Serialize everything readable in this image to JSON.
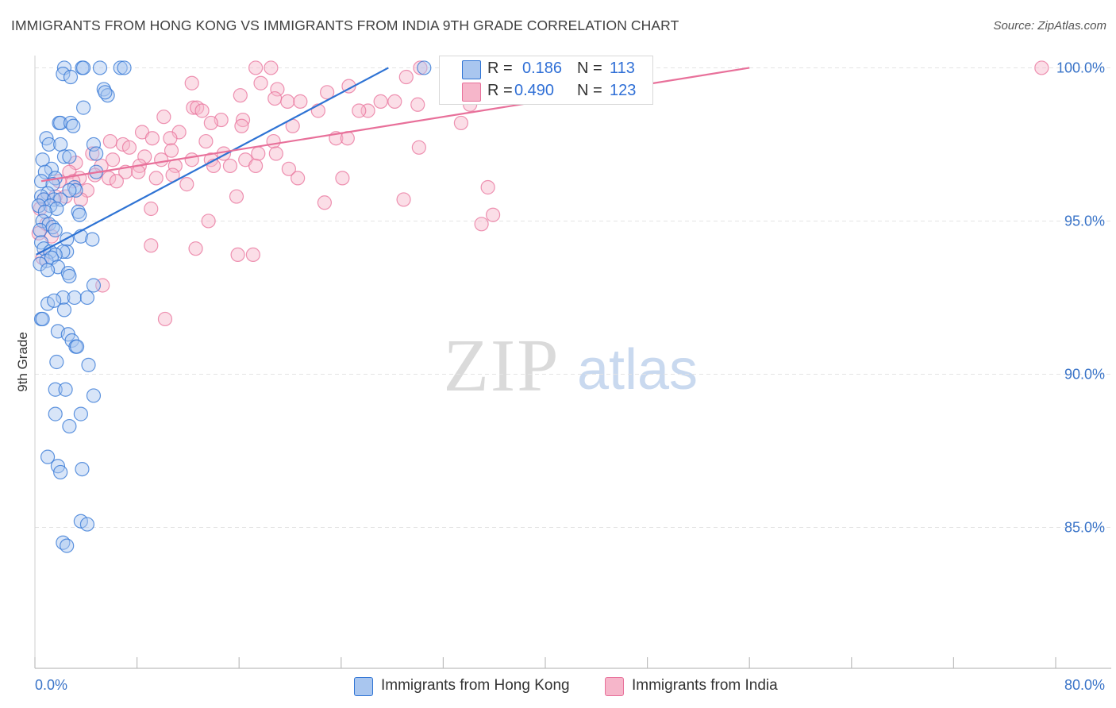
{
  "header": {
    "title": "IMMIGRANTS FROM HONG KONG VS IMMIGRANTS FROM INDIA 9TH GRADE CORRELATION CHART",
    "source": "Source: ZipAtlas.com"
  },
  "colors": {
    "blue": "#2e73d4",
    "blue_fill": "#a9c6ef",
    "pink": "#e8709a",
    "pink_fill": "#f6b6ca",
    "axis_text_blue": "#3a74c8",
    "grid": "#e4e4e4"
  },
  "legend": {
    "rows": [
      {
        "r_label": "R =",
        "r_value": "0.186",
        "n_label": "N =",
        "n_value": "113"
      },
      {
        "r_label": "R =",
        "r_value": "0.490",
        "n_label": "N =",
        "n_value": "123"
      }
    ]
  },
  "bottom_legend": {
    "items": [
      "Immigrants from Hong Kong",
      "Immigrants from India"
    ]
  },
  "watermark": {
    "zip": "ZIP",
    "atlas": "atlas"
  },
  "chart_data": {
    "type": "scatter",
    "title": "IMMIGRANTS FROM HONG KONG VS IMMIGRANTS FROM INDIA 9TH GRADE CORRELATION CHART",
    "xlabel": "",
    "ylabel": "9th Grade",
    "xlim": [
      0,
      80
    ],
    "ylim": [
      80.4,
      100.4
    ],
    "x_tick_labels": [
      "0.0%",
      "80.0%"
    ],
    "y_ticks": [
      100,
      95,
      90,
      85
    ],
    "y_tick_labels": [
      "100.0%",
      "95.0%",
      "90.0%",
      "85.0%"
    ],
    "grid": true,
    "series": [
      {
        "name": "Immigrants from Hong Kong",
        "r": 0.186,
        "n": 113,
        "trend": {
          "x": [
            0.1,
            27.7
          ],
          "y": [
            93.9,
            100.0
          ]
        },
        "points": [
          [
            2.3,
            100.0
          ],
          [
            3.7,
            100.0
          ],
          [
            3.8,
            100.0
          ],
          [
            5.1,
            100.0
          ],
          [
            6.7,
            100.0
          ],
          [
            7.0,
            100.0
          ],
          [
            30.5,
            100.0
          ],
          [
            2.2,
            99.8
          ],
          [
            2.8,
            99.7
          ],
          [
            5.4,
            99.3
          ],
          [
            5.7,
            99.1
          ],
          [
            5.5,
            99.2
          ],
          [
            3.8,
            98.7
          ],
          [
            1.9,
            98.2
          ],
          [
            2.0,
            98.2
          ],
          [
            2.8,
            98.2
          ],
          [
            3.0,
            98.1
          ],
          [
            0.9,
            97.7
          ],
          [
            1.1,
            97.5
          ],
          [
            2.0,
            97.5
          ],
          [
            4.6,
            97.5
          ],
          [
            4.8,
            97.2
          ],
          [
            2.3,
            97.1
          ],
          [
            2.7,
            97.1
          ],
          [
            0.6,
            97.0
          ],
          [
            1.3,
            96.7
          ],
          [
            0.8,
            96.6
          ],
          [
            4.8,
            96.6
          ],
          [
            1.6,
            96.4
          ],
          [
            0.5,
            96.3
          ],
          [
            1.4,
            96.2
          ],
          [
            3.1,
            96.1
          ],
          [
            3.2,
            96.0
          ],
          [
            2.7,
            96.0
          ],
          [
            1.0,
            95.9
          ],
          [
            0.5,
            95.8
          ],
          [
            0.7,
            95.7
          ],
          [
            1.5,
            95.7
          ],
          [
            2.0,
            95.7
          ],
          [
            1.2,
            95.5
          ],
          [
            0.3,
            95.5
          ],
          [
            1.7,
            95.4
          ],
          [
            0.8,
            95.3
          ],
          [
            3.4,
            95.3
          ],
          [
            3.5,
            95.2
          ],
          [
            0.6,
            95.0
          ],
          [
            1.1,
            94.9
          ],
          [
            1.4,
            94.8
          ],
          [
            0.4,
            94.7
          ],
          [
            1.6,
            94.7
          ],
          [
            3.6,
            94.5
          ],
          [
            2.5,
            94.4
          ],
          [
            0.5,
            94.3
          ],
          [
            4.5,
            94.4
          ],
          [
            0.7,
            94.1
          ],
          [
            1.2,
            94.0
          ],
          [
            2.5,
            94.0
          ],
          [
            2.2,
            94.0
          ],
          [
            1.6,
            93.9
          ],
          [
            0.9,
            93.7
          ],
          [
            1.3,
            93.8
          ],
          [
            0.4,
            93.6
          ],
          [
            1.8,
            93.5
          ],
          [
            1.0,
            93.4
          ],
          [
            2.6,
            93.3
          ],
          [
            2.7,
            93.2
          ],
          [
            4.6,
            92.9
          ],
          [
            2.2,
            92.5
          ],
          [
            3.1,
            92.5
          ],
          [
            4.1,
            92.5
          ],
          [
            1.0,
            92.3
          ],
          [
            1.5,
            92.4
          ],
          [
            2.3,
            92.1
          ],
          [
            0.5,
            91.8
          ],
          [
            0.6,
            91.8
          ],
          [
            1.8,
            91.4
          ],
          [
            2.6,
            91.3
          ],
          [
            2.9,
            91.1
          ],
          [
            3.2,
            90.9
          ],
          [
            3.3,
            90.9
          ],
          [
            1.7,
            90.4
          ],
          [
            4.2,
            90.3
          ],
          [
            1.6,
            89.5
          ],
          [
            2.4,
            89.5
          ],
          [
            4.6,
            89.3
          ],
          [
            1.6,
            88.7
          ],
          [
            3.6,
            88.7
          ],
          [
            2.7,
            88.3
          ],
          [
            1.0,
            87.3
          ],
          [
            1.8,
            87.0
          ],
          [
            3.7,
            86.9
          ],
          [
            2.0,
            86.8
          ],
          [
            3.6,
            85.2
          ],
          [
            4.1,
            85.1
          ],
          [
            2.2,
            84.5
          ],
          [
            2.5,
            84.4
          ]
        ]
      },
      {
        "name": "Immigrants from India",
        "r": 0.49,
        "n": 123,
        "trend": {
          "x": [
            0.5,
            56.0
          ],
          "y": [
            96.3,
            100.0
          ]
        },
        "points": [
          [
            17.3,
            100.0
          ],
          [
            18.5,
            100.0
          ],
          [
            30.2,
            100.0
          ],
          [
            33.3,
            100.0
          ],
          [
            78.9,
            100.0
          ],
          [
            29.1,
            99.7
          ],
          [
            12.3,
            99.5
          ],
          [
            17.7,
            99.5
          ],
          [
            24.6,
            99.4
          ],
          [
            19.0,
            99.3
          ],
          [
            22.9,
            99.2
          ],
          [
            16.1,
            99.1
          ],
          [
            18.8,
            99.0
          ],
          [
            19.8,
            98.9
          ],
          [
            20.8,
            98.9
          ],
          [
            27.1,
            98.9
          ],
          [
            28.2,
            98.9
          ],
          [
            30.0,
            98.8
          ],
          [
            34.1,
            98.8
          ],
          [
            12.4,
            98.7
          ],
          [
            12.7,
            98.7
          ],
          [
            26.1,
            98.6
          ],
          [
            13.1,
            98.6
          ],
          [
            22.2,
            98.6
          ],
          [
            10.1,
            98.4
          ],
          [
            14.6,
            98.3
          ],
          [
            16.3,
            98.3
          ],
          [
            25.4,
            98.6
          ],
          [
            13.8,
            98.2
          ],
          [
            20.2,
            98.1
          ],
          [
            16.2,
            98.1
          ],
          [
            33.4,
            98.2
          ],
          [
            8.4,
            97.9
          ],
          [
            11.3,
            97.9
          ],
          [
            9.2,
            97.7
          ],
          [
            10.6,
            97.7
          ],
          [
            23.6,
            97.7
          ],
          [
            24.5,
            97.7
          ],
          [
            13.4,
            97.6
          ],
          [
            18.7,
            97.6
          ],
          [
            5.9,
            97.6
          ],
          [
            6.9,
            97.5
          ],
          [
            7.4,
            97.4
          ],
          [
            10.7,
            97.3
          ],
          [
            14.8,
            97.2
          ],
          [
            17.5,
            97.2
          ],
          [
            18.9,
            97.2
          ],
          [
            30.1,
            97.4
          ],
          [
            4.5,
            97.2
          ],
          [
            6.1,
            97.0
          ],
          [
            8.6,
            97.1
          ],
          [
            9.9,
            97.0
          ],
          [
            12.3,
            97.0
          ],
          [
            13.8,
            97.0
          ],
          [
            16.5,
            97.0
          ],
          [
            3.2,
            96.9
          ],
          [
            5.2,
            96.8
          ],
          [
            8.2,
            96.8
          ],
          [
            11.0,
            96.8
          ],
          [
            14.0,
            96.8
          ],
          [
            15.3,
            96.8
          ],
          [
            17.3,
            96.8
          ],
          [
            19.9,
            96.7
          ],
          [
            2.7,
            96.6
          ],
          [
            4.7,
            96.5
          ],
          [
            7.1,
            96.6
          ],
          [
            8.1,
            96.6
          ],
          [
            9.5,
            96.4
          ],
          [
            10.8,
            96.5
          ],
          [
            3.5,
            96.4
          ],
          [
            5.8,
            96.4
          ],
          [
            1.9,
            96.3
          ],
          [
            3.0,
            96.3
          ],
          [
            6.4,
            96.3
          ],
          [
            11.9,
            96.2
          ],
          [
            20.6,
            96.4
          ],
          [
            24.1,
            96.4
          ],
          [
            35.5,
            96.1
          ],
          [
            4.1,
            96.0
          ],
          [
            1.6,
            95.8
          ],
          [
            2.4,
            95.8
          ],
          [
            0.7,
            95.7
          ],
          [
            3.6,
            95.7
          ],
          [
            15.8,
            95.8
          ],
          [
            22.7,
            95.6
          ],
          [
            28.9,
            95.7
          ],
          [
            0.4,
            95.4
          ],
          [
            9.1,
            95.4
          ],
          [
            13.6,
            95.0
          ],
          [
            35.9,
            95.2
          ],
          [
            0.9,
            94.9
          ],
          [
            35.0,
            94.9
          ],
          [
            0.3,
            94.6
          ],
          [
            1.3,
            94.5
          ],
          [
            9.1,
            94.2
          ],
          [
            12.6,
            94.1
          ],
          [
            15.9,
            93.9
          ],
          [
            17.1,
            93.9
          ],
          [
            0.6,
            93.8
          ],
          [
            5.3,
            92.9
          ],
          [
            10.2,
            91.8
          ]
        ]
      }
    ]
  }
}
